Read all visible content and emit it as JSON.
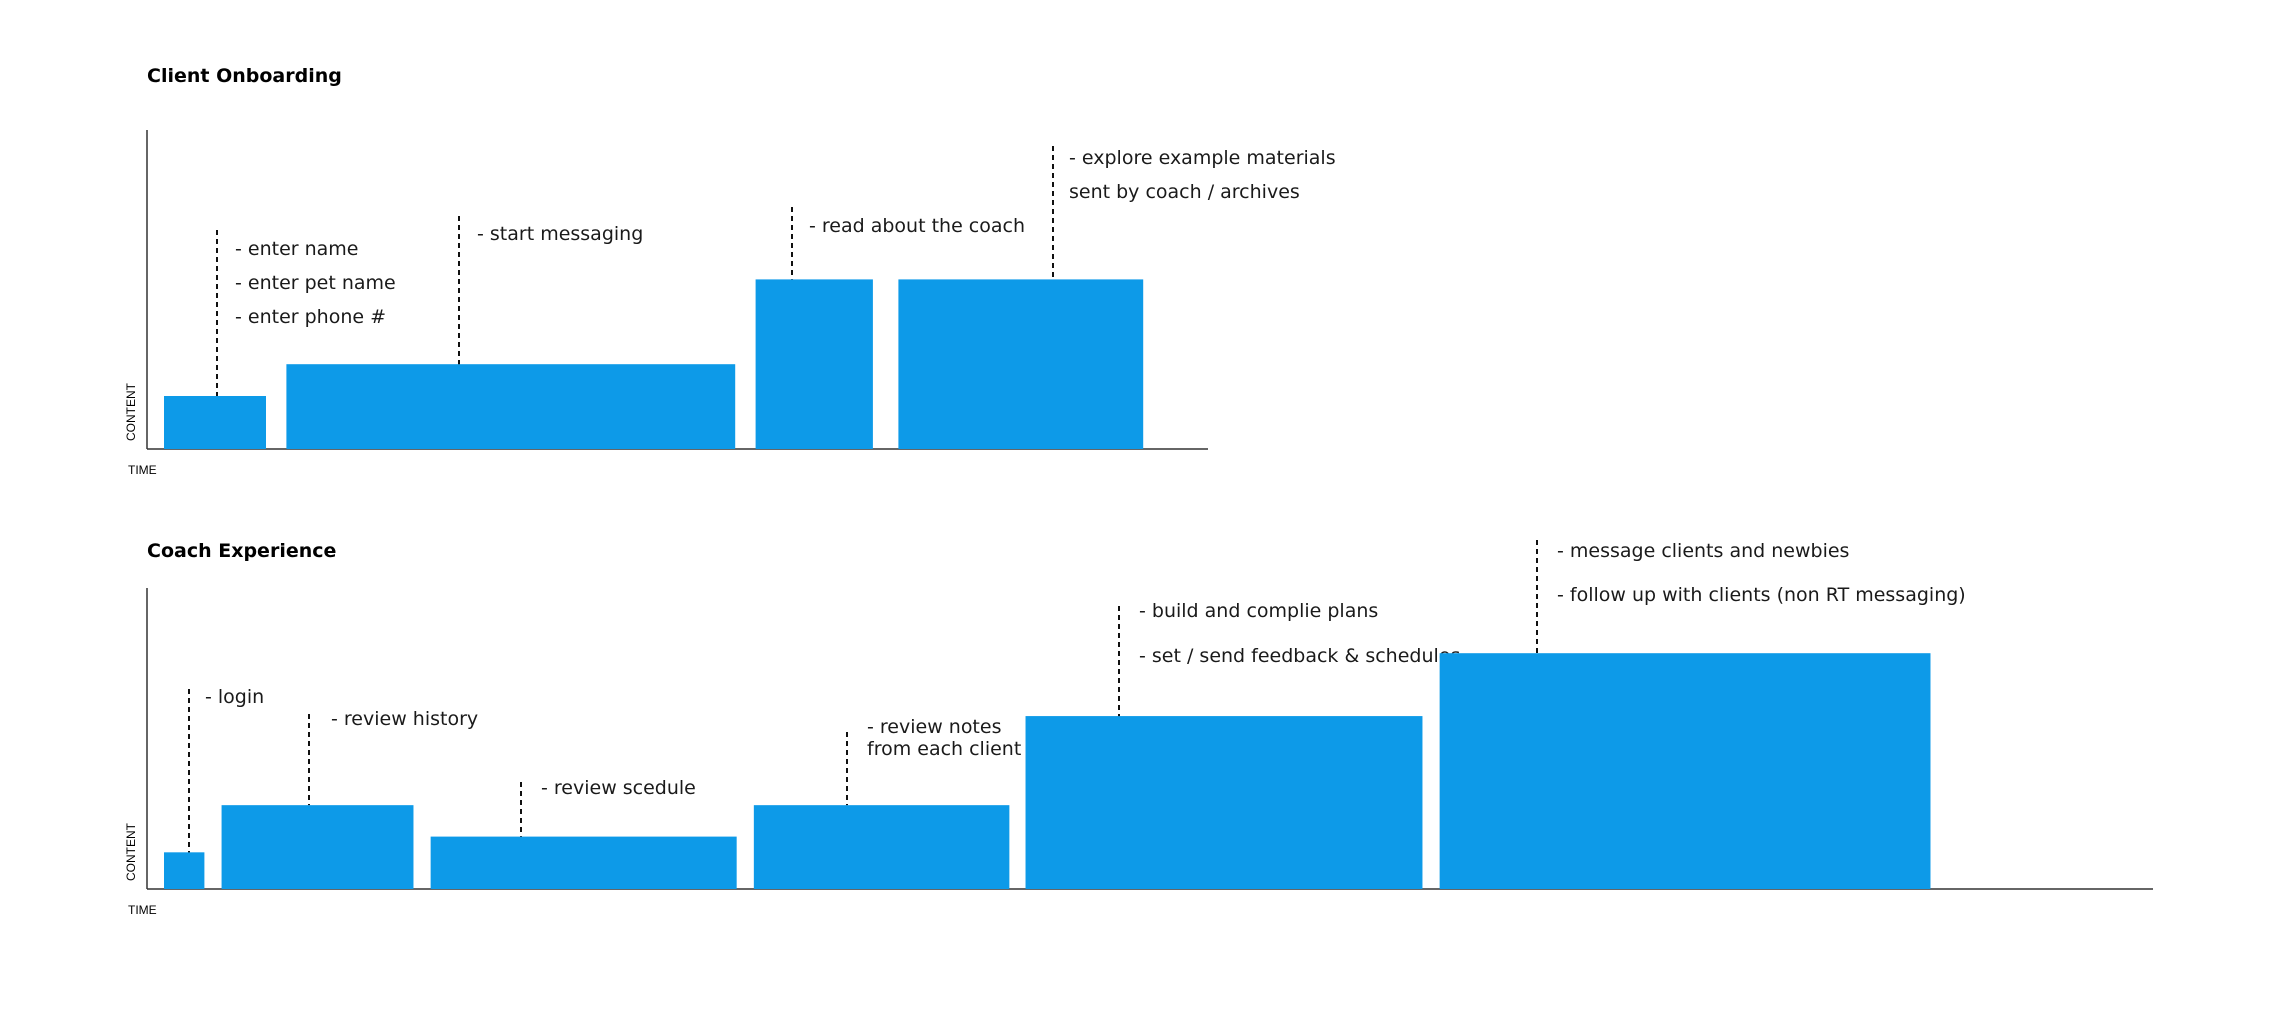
{
  "chart_data": [
    {
      "type": "bar",
      "title": "Client Onboarding",
      "xlabel": "TIME",
      "ylabel": "CONTENT",
      "grid": false,
      "colors": {
        "bar": "#0d9ae8",
        "axis": "#333333",
        "leader": "#111111"
      },
      "bars": [
        {
          "start": 0,
          "end": 1.0,
          "value": 1.0,
          "annotations": [
            "- enter name",
            "- enter pet name",
            "- enter phone #"
          ]
        },
        {
          "start": 1.2,
          "end": 5.6,
          "value": 1.6,
          "annotations": [
            "- start messaging"
          ]
        },
        {
          "start": 5.8,
          "end": 6.95,
          "value": 3.2,
          "annotations": [
            "- read about the coach"
          ]
        },
        {
          "start": 7.2,
          "end": 9.6,
          "value": 3.2,
          "annotations": [
            "- explore example materials",
            "sent by coach / archives"
          ]
        }
      ]
    },
    {
      "type": "bar",
      "title": "Coach Experience",
      "xlabel": "TIME",
      "ylabel": "CONTENT",
      "grid": false,
      "colors": {
        "bar": "#0d9ae8",
        "axis": "#333333",
        "leader": "#111111"
      },
      "bars": [
        {
          "start": 0,
          "end": 0.4,
          "value": 0.7,
          "annotations": [
            "- login"
          ]
        },
        {
          "start": 0.57,
          "end": 2.47,
          "value": 1.6,
          "annotations": [
            "- review history"
          ]
        },
        {
          "start": 2.64,
          "end": 5.67,
          "value": 1.0,
          "annotations": [
            "- review scedule"
          ]
        },
        {
          "start": 5.84,
          "end": 8.37,
          "value": 1.6,
          "annotations": [
            "- review notes",
            " from each client"
          ]
        },
        {
          "start": 8.53,
          "end": 12.46,
          "value": 3.3,
          "annotations": [
            "- build and complie plans",
            "- set / send feedback & schedules"
          ]
        },
        {
          "start": 12.63,
          "end": 17.49,
          "value": 4.5,
          "annotations": [
            "- message clients and newbies",
            "- follow up with clients (non RT messaging)"
          ]
        }
      ]
    }
  ]
}
